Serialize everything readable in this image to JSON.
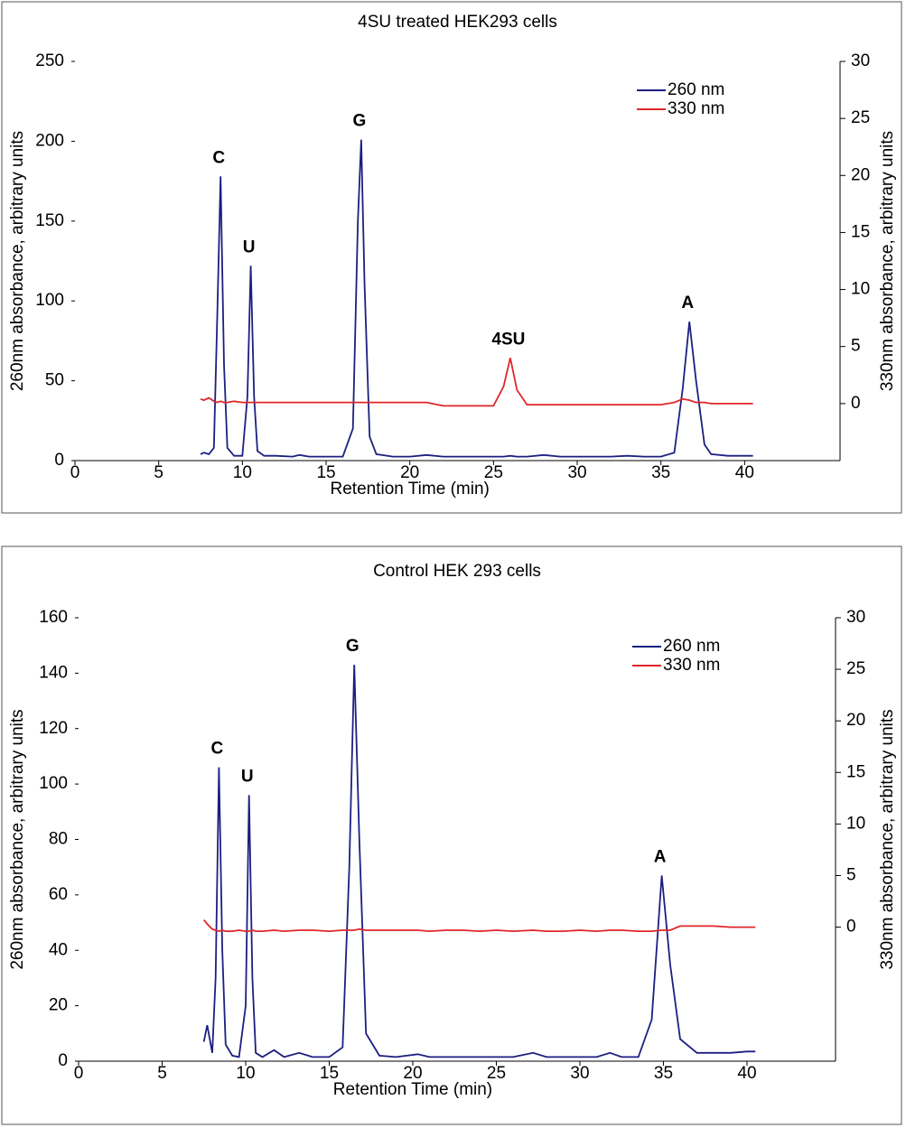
{
  "chart_data": [
    {
      "type": "line",
      "title": "4SU treated HEK293 cells",
      "x_label": "Retention Time (min)",
      "y_label": "260nm absorbance, arbitrary units",
      "y2_label": "330nm absorbance, arbitrary units",
      "xlim": [
        0,
        45.7
      ],
      "xticks": [
        0,
        5,
        10,
        15,
        20,
        25,
        30,
        35,
        40
      ],
      "ylim": [
        0,
        250
      ],
      "yticks": [
        0,
        50,
        100,
        150,
        200,
        250
      ],
      "y2lim": [
        -5,
        30
      ],
      "y2ticks": [
        0,
        5,
        10,
        15,
        20,
        25,
        30
      ],
      "legend": "upper right",
      "x": [
        7.5,
        7.7,
        8.0,
        8.3,
        8.5,
        8.7,
        8.9,
        9.1,
        9.5,
        10.0,
        10.3,
        10.5,
        10.7,
        10.9,
        11.3,
        12,
        13,
        13.4,
        14,
        15,
        16,
        16.6,
        16.9,
        17.1,
        17.3,
        17.6,
        18,
        19,
        20,
        21,
        22,
        23,
        24,
        25,
        25.6,
        26,
        26.4,
        27,
        28,
        29,
        30,
        31,
        32,
        33,
        34,
        35,
        35.8,
        36.3,
        36.7,
        37.1,
        37.6,
        38,
        39,
        40,
        40.5
      ],
      "series": [
        {
          "name": "260 nm",
          "color": "#1c1f80",
          "values": [
            4,
            5,
            4,
            8,
            90,
            178,
            60,
            8,
            3,
            3,
            40,
            122,
            40,
            6,
            3,
            3,
            2.5,
            3.5,
            2.5,
            2.5,
            2.5,
            20,
            150,
            201,
            110,
            15,
            4,
            2.5,
            2.5,
            3.5,
            2.5,
            2.5,
            2.5,
            2.5,
            2.5,
            3,
            2.5,
            2.5,
            3.5,
            2.5,
            2.5,
            2.5,
            2.5,
            3,
            2.5,
            2.5,
            5,
            45,
            87,
            50,
            10,
            4,
            3,
            3,
            3
          ]
        },
        {
          "name": "330 nm",
          "color": "#e0262a",
          "axis": "y2",
          "values": [
            0.4,
            0.3,
            0.5,
            0.2,
            0.1,
            0.2,
            0.1,
            0.1,
            0.2,
            0.1,
            0.1,
            0.1,
            0.1,
            0.1,
            0.1,
            0.1,
            0.1,
            0.1,
            0.1,
            0.1,
            0.1,
            0.1,
            0.1,
            0.1,
            0.1,
            0.1,
            0.1,
            0.1,
            0.1,
            0.1,
            -0.2,
            -0.2,
            -0.2,
            -0.2,
            1.5,
            4,
            1.2,
            -0.1,
            -0.1,
            -0.1,
            -0.1,
            -0.1,
            -0.1,
            -0.1,
            -0.1,
            -0.1,
            0.1,
            0.4,
            0.3,
            0.1,
            0.1,
            0,
            0,
            0,
            0
          ]
        }
      ],
      "annotations": [
        {
          "text": "C",
          "x": 8.7,
          "y": 178
        },
        {
          "text": "U",
          "x": 10.5,
          "y": 122
        },
        {
          "text": "G",
          "x": 17.1,
          "y": 201
        },
        {
          "text": "4SU",
          "x": 26,
          "y": 4,
          "axis": "y2"
        },
        {
          "text": "A",
          "x": 36.7,
          "y": 87
        }
      ]
    },
    {
      "type": "line",
      "title": "Control HEK 293 cells",
      "x_label": "Retention Time (min)",
      "y_label": "260nm absorbance, arbitrary units",
      "y2_label": "330nm absorbance, arbitrary units",
      "xlim": [
        0,
        45.3
      ],
      "xticks": [
        0,
        5,
        10,
        15,
        20,
        25,
        30,
        35,
        40
      ],
      "ylim": [
        0,
        160
      ],
      "yticks": [
        0,
        20,
        40,
        60,
        80,
        100,
        120,
        140,
        160
      ],
      "y2lim": [
        -13,
        30
      ],
      "y2ticks": [
        0,
        5,
        10,
        15,
        20,
        25,
        30
      ],
      "legend": "upper right",
      "x": [
        7.5,
        7.7,
        8.0,
        8.2,
        8.4,
        8.6,
        8.8,
        9.2,
        9.6,
        10.0,
        10.2,
        10.4,
        10.6,
        11.0,
        11.7,
        12.3,
        13.2,
        14,
        15,
        15.8,
        16.2,
        16.5,
        16.8,
        17.2,
        18,
        19,
        20.3,
        21,
        22,
        23,
        24,
        25,
        26,
        27.2,
        28,
        29,
        30,
        31,
        31.8,
        32.5,
        33.5,
        34.3,
        34.9,
        35.4,
        36,
        37,
        38,
        39,
        40,
        40.5
      ],
      "series": [
        {
          "name": "260 nm",
          "color": "#1c1f80",
          "values": [
            7,
            13,
            3,
            30,
            106,
            40,
            6,
            2,
            1.5,
            20,
            96,
            30,
            3,
            1.5,
            4,
            1.5,
            3,
            1.5,
            1.5,
            5,
            70,
            143,
            80,
            10,
            2,
            1.5,
            2.5,
            1.5,
            1.5,
            1.5,
            1.5,
            1.5,
            1.5,
            3,
            1.5,
            1.5,
            1.5,
            1.5,
            3,
            1.5,
            1.5,
            15,
            67,
            35,
            8,
            3,
            3,
            3,
            3.5,
            3.5
          ]
        },
        {
          "name": "330 nm",
          "color": "#e0262a",
          "axis": "y2",
          "values": [
            0.7,
            0.3,
            -0.2,
            -0.3,
            -0.4,
            -0.3,
            -0.4,
            -0.4,
            -0.3,
            -0.4,
            -0.4,
            -0.3,
            -0.4,
            -0.4,
            -0.3,
            -0.4,
            -0.3,
            -0.3,
            -0.4,
            -0.3,
            -0.3,
            -0.3,
            -0.2,
            -0.3,
            -0.3,
            -0.3,
            -0.3,
            -0.4,
            -0.3,
            -0.3,
            -0.4,
            -0.3,
            -0.4,
            -0.3,
            -0.4,
            -0.4,
            -0.3,
            -0.4,
            -0.3,
            -0.3,
            -0.4,
            -0.4,
            -0.3,
            -0.3,
            0.1,
            0.1,
            0.1,
            0,
            0,
            0
          ]
        }
      ],
      "annotations": [
        {
          "text": "C",
          "x": 8.4,
          "y": 106
        },
        {
          "text": "U",
          "x": 10.2,
          "y": 96
        },
        {
          "text": "G",
          "x": 16.5,
          "y": 143
        },
        {
          "text": "A",
          "x": 34.9,
          "y": 67
        }
      ]
    }
  ]
}
